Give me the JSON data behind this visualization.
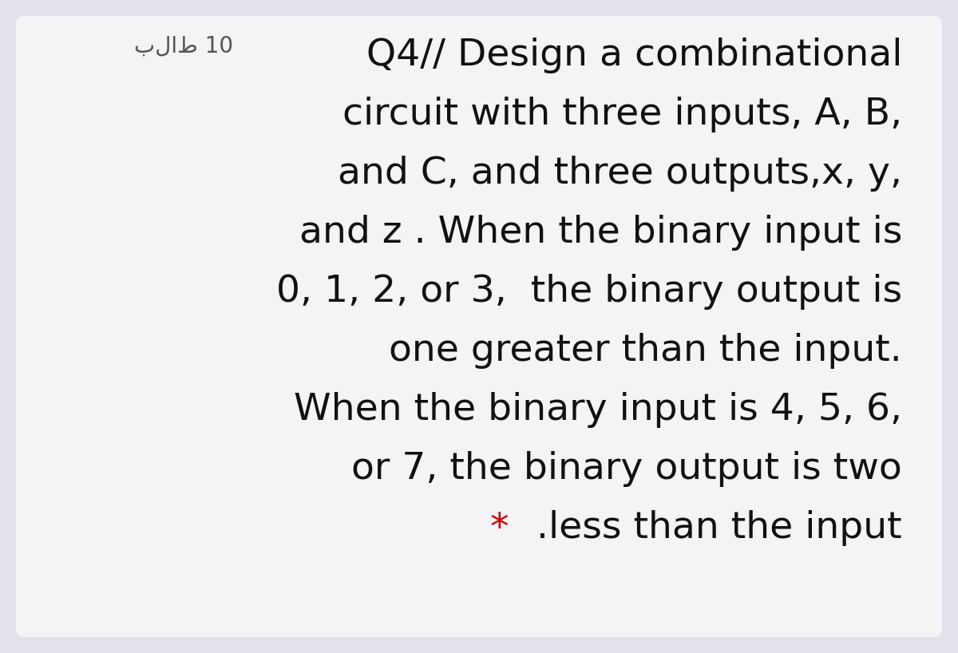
{
  "background_color": "#e2e2ec",
  "card_color": "#f4f4f6",
  "arabic_label": "بلاط 10",
  "arabic_color": "#555555",
  "arabic_fontsize": 20,
  "main_lines": [
    "Q4// Design a combinational",
    "circuit with three inputs, A, B,",
    "and C, and three outputs,x, y,",
    "and z . When the binary input is",
    "0, 1, 2, or 3,  the binary output is",
    "one greater than the input.",
    "When the binary input is 4, 5, 6,",
    "or 7, the binary output is two"
  ],
  "last_line_star": "*",
  "last_line_text": " .less than the input",
  "star_color": "#cc0000",
  "text_color": "#111111",
  "main_fontsize": 34,
  "figsize": [
    12.0,
    8.18
  ],
  "dpi": 100
}
